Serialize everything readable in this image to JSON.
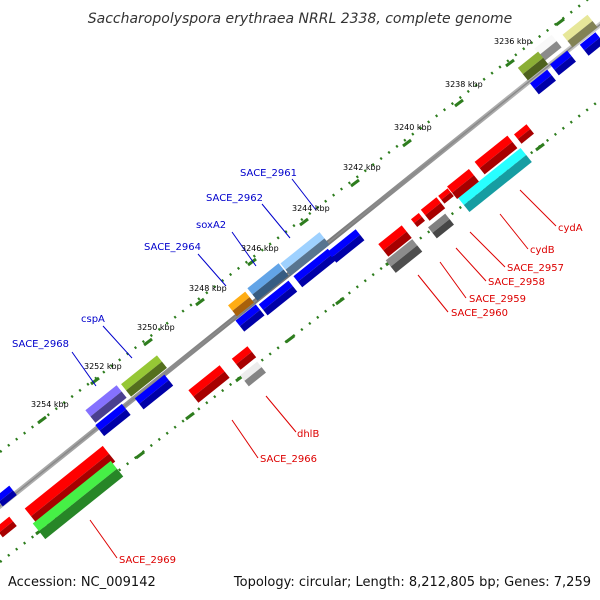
{
  "title": "Saccharopolyspora erythraea NRRL 2338, complete genome",
  "accession": "Accession: NC_009142",
  "topology": "Topology: circular; Length: 8,212,805 bp; Genes: 7,259",
  "ticks": [
    "3236 kbp",
    "3238 kbp",
    "3240 kbp",
    "3242 kbp",
    "3244 kbp",
    "3246 kbp",
    "3248 kbp",
    "3250 kbp",
    "3252 kbp",
    "3254 kbp"
  ],
  "colors": {
    "forward_label": "#0000cc",
    "reverse_label": "#dd0000",
    "cds": "#0000ee",
    "rna": "#ee0000",
    "backbone": "#8a8a8a",
    "dots": "#2e7d1e"
  },
  "forward_labels": [
    "SACE_2961",
    "SACE_2962",
    "soxA2",
    "SACE_2964",
    "cspA",
    "SACE_2968"
  ],
  "reverse_labels": [
    "cydA",
    "cydB",
    "SACE_2957",
    "SACE_2958",
    "SACE_2959",
    "SACE_2960",
    "dhlB",
    "SACE_2966",
    "SACE_2969"
  ]
}
